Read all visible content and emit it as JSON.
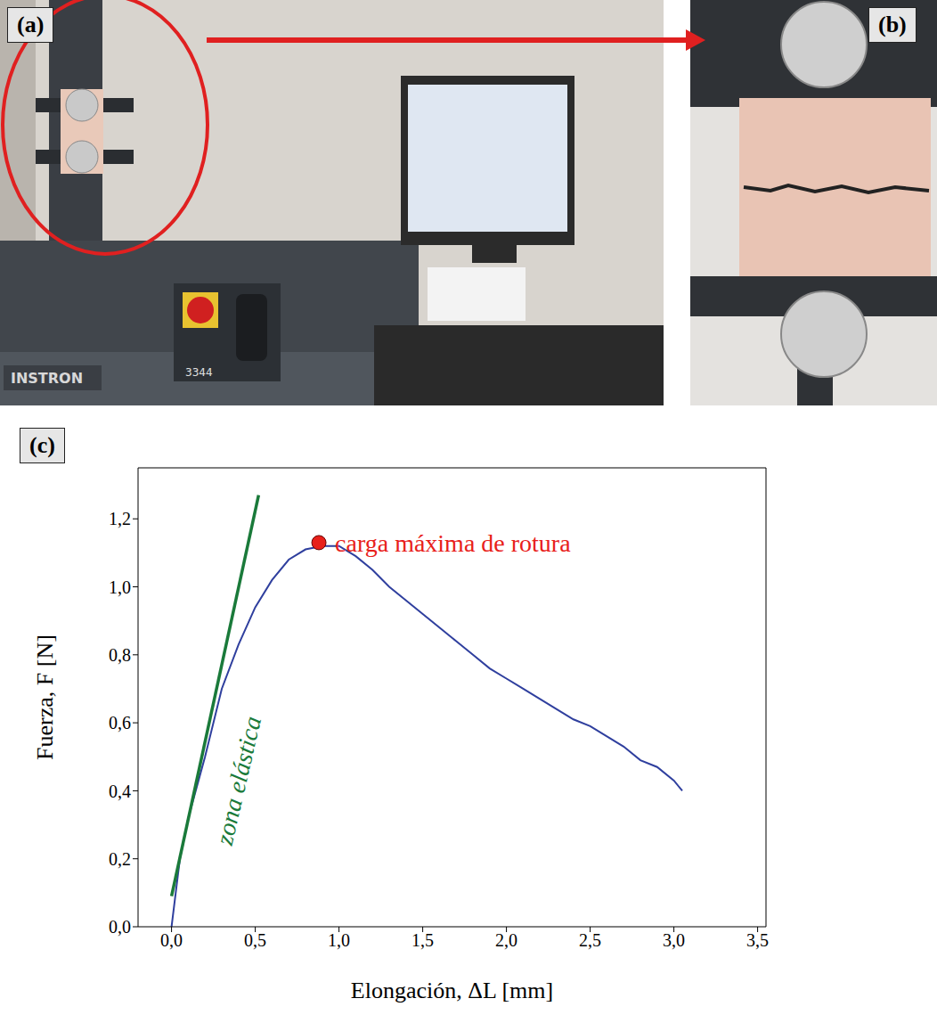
{
  "panels": [
    {
      "label": "(a)",
      "texts": [
        "INSTRON",
        "3344"
      ]
    },
    {
      "label": "(b)"
    }
  ],
  "chart_data": {
    "label": "(c)",
    "type": "line",
    "x_label": "Elongación, ΔL [mm]",
    "y_label": "Fuerza, F [N]",
    "xlim": [
      -0.2,
      3.55
    ],
    "xticks": [
      {
        "value": 0,
        "label": "0,0"
      },
      {
        "value": 0.5,
        "label": "0,5"
      },
      {
        "value": 1,
        "label": "1,0"
      },
      {
        "value": 1.5,
        "label": "1,5"
      },
      {
        "value": 2,
        "label": "2,0"
      },
      {
        "value": 2.5,
        "label": "2,5"
      },
      {
        "value": 3,
        "label": "3,0"
      },
      {
        "value": 3.5,
        "label": "3,5"
      }
    ],
    "ylim": [
      0,
      1.35
    ],
    "yticks": [
      {
        "value": 0,
        "label": "0,0"
      },
      {
        "value": 0.2,
        "label": "0,2"
      },
      {
        "value": 0.4,
        "label": "0,4"
      },
      {
        "value": 0.6,
        "label": "0,6"
      },
      {
        "value": 0.8,
        "label": "0,8"
      },
      {
        "value": 1,
        "label": "1,0"
      },
      {
        "value": 1.2,
        "label": "1,2"
      }
    ],
    "grid": false,
    "series": [
      {
        "color": "#2f3f9e",
        "line_style": "solid",
        "x": [
          0,
          0.05,
          0.1,
          0.2,
          0.3,
          0.4,
          0.5,
          0.6,
          0.7,
          0.8,
          0.9,
          1.0,
          1.1,
          1.2,
          1.3,
          1.4,
          1.5,
          1.6,
          1.7,
          1.8,
          1.9,
          2.0,
          2.1,
          2.2,
          2.3,
          2.4,
          2.5,
          2.6,
          2.7,
          2.8,
          2.9,
          3.0,
          3.05
        ],
        "values": [
          0,
          0.2,
          0.32,
          0.5,
          0.7,
          0.83,
          0.94,
          1.02,
          1.08,
          1.11,
          1.12,
          1.12,
          1.09,
          1.05,
          1.0,
          0.96,
          0.92,
          0.88,
          0.84,
          0.8,
          0.76,
          0.73,
          0.7,
          0.67,
          0.64,
          0.61,
          0.59,
          0.56,
          0.53,
          0.49,
          0.47,
          0.43,
          0.4
        ]
      },
      {
        "color": "#1a7a3a",
        "line_style": "solid",
        "x": [
          0,
          0.52
        ],
        "values": [
          0.09,
          1.27
        ]
      }
    ],
    "annotations": [
      {
        "text": "carga máxima de rotura",
        "x": 0.88,
        "y": 1.13,
        "color": "#e8201a",
        "marker": "circle"
      },
      {
        "text": "zona elástica",
        "color": "#1a7a3a"
      }
    ]
  }
}
